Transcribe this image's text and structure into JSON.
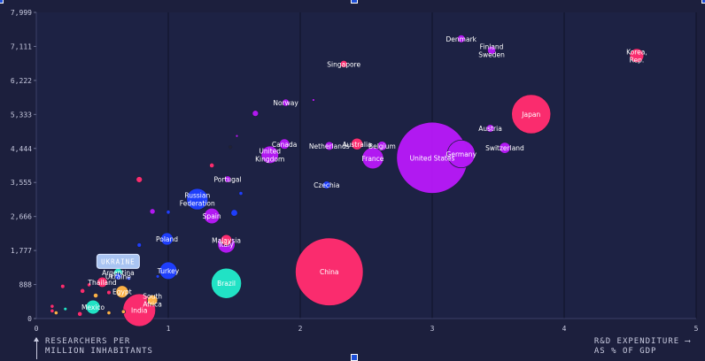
{
  "chart_data": {
    "type": "scatter",
    "title": "",
    "xlabel_lines": [
      "RESEARCHERS PER",
      "MILLION INHABITANTS"
    ],
    "xlabel_arrow": "⟶",
    "ylabel_lines": [
      "R&D EXPENDITURE",
      "AS % OF GDP"
    ],
    "axis_label_note": "Bottom-left caption refers to the vertical axis; bottom-right caption refers to the horizontal axis.",
    "x_ticks": [
      "0",
      "1",
      "2",
      "3",
      "4",
      "5"
    ],
    "y_ticks": [
      "0",
      "888",
      "1,777",
      "2,666",
      "3,555",
      "4,444",
      "5,333",
      "6,222",
      "7,111",
      "7,999"
    ],
    "xlim": [
      0,
      5
    ],
    "ylim": [
      0,
      7999
    ],
    "grid": "vertical",
    "tooltip": {
      "label": "UKRAINE",
      "x": 0.62,
      "y": 1470
    },
    "colors": {
      "background": "#1c1f3d",
      "pink": "#ff2d6f",
      "purple": "#b419f5",
      "blue": "#1f3fff",
      "teal": "#22e6c8",
      "orange": "#ffb347",
      "tooltip": "#a9c4f2",
      "gridline": "#34385a",
      "text": "#c9cbe0"
    },
    "points": [
      {
        "label": "Denmark",
        "x": 3.22,
        "y": 7310,
        "size": 40,
        "color": "#b419f5"
      },
      {
        "label": "Finland\nSweden",
        "x": 3.45,
        "y": 7010,
        "size": 45,
        "color": "#b419f5"
      },
      {
        "label": "Korea,\nRep.",
        "x": 4.55,
        "y": 6870,
        "size": 130,
        "color": "#ff2d6f"
      },
      {
        "label": "Singapore",
        "x": 2.33,
        "y": 6650,
        "size": 35,
        "color": "#ff2d6f"
      },
      {
        "label": "Norway",
        "x": 1.89,
        "y": 5640,
        "size": 35,
        "color": "#b419f5"
      },
      {
        "label": "Japan",
        "x": 3.75,
        "y": 5340,
        "size": 1000,
        "color": "#ff2d6f"
      },
      {
        "label": "Austria",
        "x": 3.44,
        "y": 4970,
        "size": 40,
        "color": "#b419f5"
      },
      {
        "label": "Canada",
        "x": 1.88,
        "y": 4560,
        "size": 70,
        "color": "#b419f5"
      },
      {
        "label": "Netherlands",
        "x": 2.22,
        "y": 4510,
        "size": 50,
        "color": "#b419f5"
      },
      {
        "label": "Australia",
        "x": 2.43,
        "y": 4560,
        "size": 90,
        "color": "#ff2d6f"
      },
      {
        "label": "Belgium",
        "x": 2.62,
        "y": 4510,
        "size": 60,
        "color": "#b419f5"
      },
      {
        "label": "Switzerland",
        "x": 3.55,
        "y": 4460,
        "size": 80,
        "color": "#b419f5"
      },
      {
        "label": "United\nKingdom",
        "x": 1.77,
        "y": 4280,
        "size": 200,
        "color": "#b419f5"
      },
      {
        "label": "France",
        "x": 2.55,
        "y": 4190,
        "size": 300,
        "color": "#b419f5"
      },
      {
        "label": "United States",
        "x": 3.0,
        "y": 4200,
        "size": 3300,
        "color": "#b419f5"
      },
      {
        "label": "Germany",
        "x": 3.22,
        "y": 4300,
        "size": 500,
        "color": "#b419f5"
      },
      {
        "label": "Portugal",
        "x": 1.45,
        "y": 3640,
        "size": 30,
        "color": "#b419f5"
      },
      {
        "label": "Czechia",
        "x": 2.2,
        "y": 3490,
        "size": 40,
        "color": "#1f3fff"
      },
      {
        "label": "Russian\nFederation",
        "x": 1.22,
        "y": 3120,
        "size": 300,
        "color": "#1f3fff"
      },
      {
        "label": "Spain",
        "x": 1.33,
        "y": 2680,
        "size": 160,
        "color": "#b419f5"
      },
      {
        "label": "Malaysia",
        "x": 1.44,
        "y": 2050,
        "size": 80,
        "color": "#ff2d6f"
      },
      {
        "label": "Italy",
        "x": 1.44,
        "y": 1940,
        "size": 200,
        "color": "#b419f5"
      },
      {
        "label": "Poland",
        "x": 0.99,
        "y": 2080,
        "size": 100,
        "color": "#1f3fff"
      },
      {
        "label": "Argentina",
        "x": 0.62,
        "y": 1200,
        "size": 50,
        "color": "#22e6c8"
      },
      {
        "label": "Ukraine",
        "x": 0.62,
        "y": 1100,
        "size": 30,
        "color": "#1f3fff"
      },
      {
        "label": "Thailand",
        "x": 0.5,
        "y": 950,
        "size": 70,
        "color": "#ff2d6f"
      },
      {
        "label": "Turkey",
        "x": 1.0,
        "y": 1250,
        "size": 200,
        "color": "#1f3fff"
      },
      {
        "label": "Brazil",
        "x": 1.44,
        "y": 920,
        "size": 600,
        "color": "#22e6c8"
      },
      {
        "label": "China",
        "x": 2.22,
        "y": 1220,
        "size": 3000,
        "color": "#ff2d6f"
      },
      {
        "label": "Egypt",
        "x": 0.65,
        "y": 700,
        "size": 100,
        "color": "#ffb347"
      },
      {
        "label": "South\nAfrica",
        "x": 0.88,
        "y": 480,
        "size": 70,
        "color": "#ffb347"
      },
      {
        "label": "Mexico",
        "x": 0.43,
        "y": 300,
        "size": 130,
        "color": "#22e6c8"
      },
      {
        "label": "India",
        "x": 0.78,
        "y": 220,
        "size": 700,
        "color": "#ff2d6f"
      },
      {
        "label": "",
        "x": 1.66,
        "y": 5360,
        "size": 25,
        "color": "#b419f5"
      },
      {
        "label": "",
        "x": 1.52,
        "y": 4770,
        "size": 5,
        "color": "#b419f5"
      },
      {
        "label": "",
        "x": 1.47,
        "y": 4480,
        "size": 8,
        "color": "#222233"
      },
      {
        "label": "",
        "x": 1.33,
        "y": 4000,
        "size": 15,
        "color": "#ff2d6f"
      },
      {
        "label": "",
        "x": 0.78,
        "y": 3630,
        "size": 25,
        "color": "#ff2d6f"
      },
      {
        "label": "",
        "x": 0.88,
        "y": 2800,
        "size": 20,
        "color": "#b419f5"
      },
      {
        "label": "",
        "x": 1.0,
        "y": 2780,
        "size": 10,
        "color": "#1f3fff"
      },
      {
        "label": "",
        "x": 1.5,
        "y": 2760,
        "size": 30,
        "color": "#1f3fff"
      },
      {
        "label": "",
        "x": 1.55,
        "y": 3270,
        "size": 10,
        "color": "#1f3fff"
      },
      {
        "label": "",
        "x": 2.1,
        "y": 5710,
        "size": 5,
        "color": "#b419f5"
      },
      {
        "label": "",
        "x": 0.78,
        "y": 1920,
        "size": 12,
        "color": "#1f3fff"
      },
      {
        "label": "",
        "x": 0.2,
        "y": 840,
        "size": 12,
        "color": "#ff2d6f"
      },
      {
        "label": "",
        "x": 0.35,
        "y": 720,
        "size": 15,
        "color": "#ff2d6f"
      },
      {
        "label": "",
        "x": 0.45,
        "y": 600,
        "size": 15,
        "color": "#ffb347"
      },
      {
        "label": "",
        "x": 0.55,
        "y": 680,
        "size": 12,
        "color": "#ff2d6f"
      },
      {
        "label": "",
        "x": 0.12,
        "y": 320,
        "size": 10,
        "color": "#ff2d6f"
      },
      {
        "label": "",
        "x": 0.15,
        "y": 150,
        "size": 10,
        "color": "#ffb347"
      },
      {
        "label": "",
        "x": 0.33,
        "y": 120,
        "size": 15,
        "color": "#ff2d6f"
      },
      {
        "label": "",
        "x": 0.55,
        "y": 150,
        "size": 10,
        "color": "#ffb347"
      },
      {
        "label": "",
        "x": 0.66,
        "y": 180,
        "size": 10,
        "color": "#ffb347"
      },
      {
        "label": "",
        "x": 0.22,
        "y": 250,
        "size": 8,
        "color": "#22e6c8"
      },
      {
        "label": "",
        "x": 0.12,
        "y": 200,
        "size": 10,
        "color": "#ff2d6f"
      },
      {
        "label": "",
        "x": 0.92,
        "y": 1100,
        "size": 8,
        "color": "#1f3fff"
      },
      {
        "label": "",
        "x": 0.7,
        "y": 1050,
        "size": 10,
        "color": "#1f3fff"
      },
      {
        "label": "",
        "x": 0.4,
        "y": 880,
        "size": 10,
        "color": "#ff2d6f"
      }
    ]
  }
}
